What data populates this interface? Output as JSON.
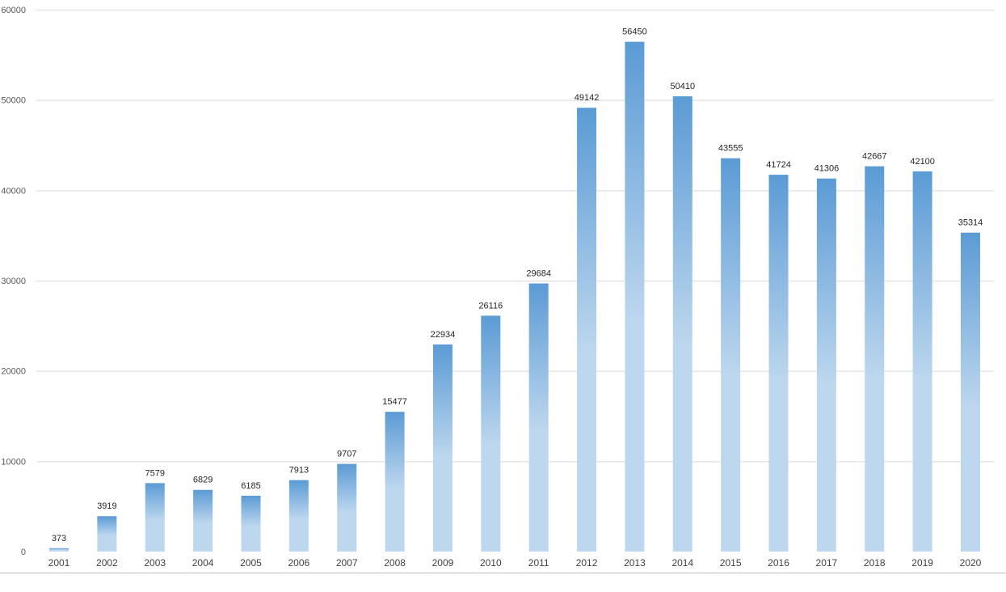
{
  "chart_data": {
    "type": "bar",
    "title": "",
    "xlabel": "",
    "ylabel": "",
    "categories": [
      "2001",
      "2002",
      "2003",
      "2004",
      "2005",
      "2006",
      "2007",
      "2008",
      "2009",
      "2010",
      "2011",
      "2012",
      "2013",
      "2014",
      "2015",
      "2016",
      "2017",
      "2018",
      "2019",
      "2020"
    ],
    "values": [
      373,
      3919,
      7579,
      6829,
      6185,
      7913,
      9707,
      15477,
      22934,
      26116,
      29684,
      49142,
      56450,
      50410,
      43555,
      41724,
      41306,
      42667,
      42100,
      35314
    ],
    "ylim": [
      0,
      60000
    ],
    "yticks": [
      0,
      10000,
      20000,
      30000,
      40000,
      50000,
      60000
    ],
    "grid": true,
    "legend": "none",
    "colors": {
      "bar_top": "#5b9bd5",
      "bar_bottom": "#bdd7ee",
      "grid": "#d9d9d9"
    }
  }
}
